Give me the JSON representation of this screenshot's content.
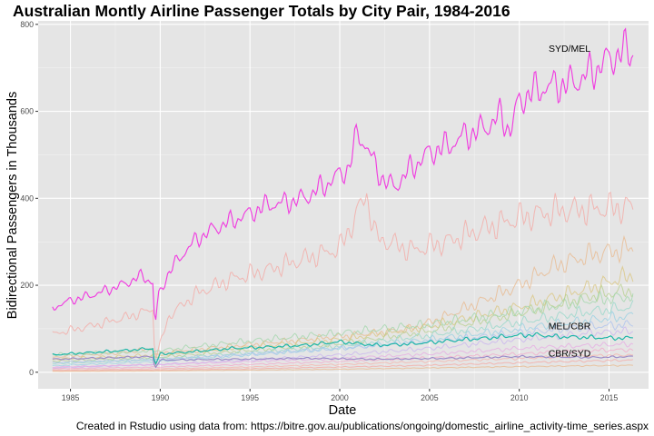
{
  "chart_data": {
    "type": "line",
    "title": "Australian Montly Airline Passenger Totals by City Pair, 1984-2016",
    "xlabel": "Date",
    "ylabel": "Bidirectional Passengers in Thousands",
    "caption": "Created in Rstudio using data from: https://bitre.gov.au/publications/ongoing/domestic_airline_activity-time_series.aspx",
    "xlim": [
      1983.2,
      2017.2
    ],
    "ylim": [
      -38,
      808
    ],
    "x_ticks": [
      "1985",
      "1990",
      "1995",
      "2000",
      "2005",
      "2010",
      "2015"
    ],
    "y_ticks": [
      "0",
      "200",
      "400",
      "600",
      "800"
    ],
    "grid": true,
    "legend": "none",
    "colors": {
      "panel": "#e5e5e5",
      "grid_major": "#ffffff",
      "grid_minor": "#f2f2f2",
      "highlight_syd_mel": "#f03ee0",
      "highlight_mel_cbr": "#19b5a6",
      "highlight_cbr_syd": "#9a8cc8",
      "background_series": [
        "#f4a6a0",
        "#e8b78a",
        "#d9c47c",
        "#b5cf8b",
        "#9fd6a8",
        "#93d7c8",
        "#94cfe3",
        "#a9c0ee",
        "#c8b2ef",
        "#e6a8e3",
        "#f2a6c8",
        "#f6b0a8"
      ]
    },
    "annotations": [
      "SYD/MEL",
      "MEL/CBR",
      "CBR/SYD"
    ],
    "highlighted_series": [
      {
        "name": "SYD/MEL",
        "x": [
          1984.0,
          1985.0,
          1986.0,
          1987.0,
          1988.0,
          1989.0,
          1989.6,
          1989.7,
          1989.9,
          1990.5,
          1991.0,
          1992.0,
          1993.0,
          1994.0,
          1995.0,
          1996.0,
          1997.0,
          1998.0,
          1999.0,
          2000.0,
          2000.5,
          2001.0,
          2001.5,
          2002.0,
          2002.5,
          2003.0,
          2004.0,
          2005.0,
          2006.0,
          2007.0,
          2008.0,
          2009.0,
          2009.5,
          2010.0,
          2011.0,
          2012.0,
          2013.0,
          2014.0,
          2015.0,
          2016.0,
          2016.4
        ],
        "values": [
          148,
          165,
          175,
          188,
          203,
          222,
          205,
          98,
          178,
          230,
          260,
          305,
          330,
          348,
          365,
          385,
          390,
          400,
          425,
          455,
          470,
          550,
          520,
          470,
          440,
          425,
          470,
          505,
          520,
          545,
          560,
          590,
          555,
          625,
          650,
          660,
          665,
          690,
          720,
          740,
          735
        ]
      },
      {
        "name": "MEL/CBR",
        "x": [
          1984.0,
          1986.0,
          1988.0,
          1989.6,
          1989.7,
          1990.0,
          1992.0,
          1994.0,
          1996.0,
          1998.0,
          2000.0,
          2002.0,
          2004.0,
          2006.0,
          2008.0,
          2010.0,
          2011.0,
          2012.0,
          2014.0,
          2016.0,
          2016.4
        ],
        "values": [
          40,
          45,
          50,
          55,
          15,
          42,
          48,
          55,
          58,
          62,
          70,
          62,
          65,
          72,
          78,
          85,
          86,
          82,
          80,
          78,
          82
        ]
      },
      {
        "name": "CBR/SYD",
        "x": [
          1984.0,
          1987.0,
          1989.6,
          1989.7,
          1990.0,
          1994.0,
          1998.0,
          2002.0,
          2006.0,
          2010.0,
          2014.0,
          2016.4
        ],
        "values": [
          30,
          33,
          36,
          8,
          28,
          30,
          32,
          30,
          32,
          36,
          34,
          36
        ]
      }
    ],
    "background_series": [
      {
        "x": [
          1984.0,
          1986.0,
          1988.0,
          1989.6,
          1989.7,
          1990.5,
          1992.0,
          1994.0,
          1996.0,
          1998.0,
          2000.0,
          2001.5,
          2002.0,
          2004.0,
          2006.0,
          2008.0,
          2010.0,
          2012.0,
          2014.0,
          2016.4
        ],
        "values": [
          88,
          105,
          125,
          145,
          28,
          130,
          180,
          215,
          235,
          260,
          285,
          410,
          310,
          280,
          300,
          330,
          355,
          370,
          375,
          380
        ]
      },
      {
        "x": [
          1984.0,
          1988.0,
          1989.6,
          1989.7,
          1990.0,
          1994.0,
          1998.0,
          2002.0,
          2004.0,
          2006.0,
          2008.0,
          2010.0,
          2012.0,
          2014.0,
          2016.4
        ],
        "values": [
          35,
          45,
          55,
          10,
          45,
          60,
          75,
          90,
          100,
          130,
          165,
          200,
          245,
          270,
          285
        ]
      },
      {
        "x": [
          1984.0,
          1990.0,
          1995.0,
          2000.0,
          2005.0,
          2010.0,
          2014.0,
          2016.4
        ],
        "values": [
          30,
          40,
          58,
          75,
          105,
          150,
          195,
          225
        ]
      },
      {
        "x": [
          1984.0,
          1990.0,
          1995.0,
          2000.0,
          2005.0,
          2010.0,
          2014.0,
          2016.4
        ],
        "values": [
          25,
          35,
          50,
          65,
          95,
          135,
          175,
          190
        ]
      },
      {
        "x": [
          1984.0,
          1990.0,
          1995.0,
          2000.0,
          2005.0,
          2010.0,
          2014.0,
          2016.4
        ],
        "values": [
          40,
          50,
          72,
          90,
          110,
          140,
          165,
          175
        ]
      },
      {
        "x": [
          1984.0,
          1990.0,
          1995.0,
          2000.0,
          2005.0,
          2010.0,
          2014.0,
          2016.4
        ],
        "values": [
          20,
          30,
          45,
          60,
          85,
          115,
          140,
          150
        ]
      },
      {
        "x": [
          1984.0,
          1990.0,
          1995.0,
          2000.0,
          2005.0,
          2010.0,
          2014.0,
          2016.4
        ],
        "values": [
          15,
          25,
          40,
          55,
          75,
          100,
          120,
          130
        ]
      },
      {
        "x": [
          1984.0,
          1990.0,
          1995.0,
          2000.0,
          2005.0,
          2010.0,
          2014.0,
          2016.4
        ],
        "values": [
          22,
          30,
          42,
          55,
          70,
          90,
          105,
          110
        ]
      },
      {
        "x": [
          1984.0,
          1990.0,
          1995.0,
          2000.0,
          2005.0,
          2010.0,
          2014.0,
          2016.4
        ],
        "values": [
          10,
          18,
          28,
          40,
          55,
          75,
          90,
          95
        ]
      },
      {
        "x": [
          1984.0,
          1990.0,
          1995.0,
          2000.0,
          2005.0,
          2010.0,
          2014.0,
          2016.4
        ],
        "values": [
          12,
          18,
          25,
          32,
          42,
          55,
          62,
          65
        ]
      },
      {
        "x": [
          1984.0,
          1990.0,
          1995.0,
          2000.0,
          2005.0,
          2010.0,
          2014.0,
          2016.4
        ],
        "values": [
          8,
          12,
          18,
          25,
          33,
          42,
          50,
          52
        ]
      },
      {
        "x": [
          1984.0,
          1990.0,
          1995.0,
          2000.0,
          2005.0,
          2010.0,
          2014.0,
          2016.4
        ],
        "values": [
          5,
          8,
          12,
          18,
          25,
          32,
          38,
          40
        ]
      },
      {
        "x": [
          1984.0,
          1990.0,
          1995.0,
          2000.0,
          2005.0,
          2010.0,
          2014.0,
          2016.4
        ],
        "values": [
          3,
          5,
          8,
          12,
          16,
          22,
          26,
          28
        ]
      },
      {
        "x": [
          1984.0,
          1990.0,
          1995.0,
          2000.0,
          2005.0,
          2010.0,
          2014.0,
          2016.4
        ],
        "values": [
          2,
          3,
          5,
          7,
          10,
          13,
          15,
          16
        ]
      }
    ]
  }
}
